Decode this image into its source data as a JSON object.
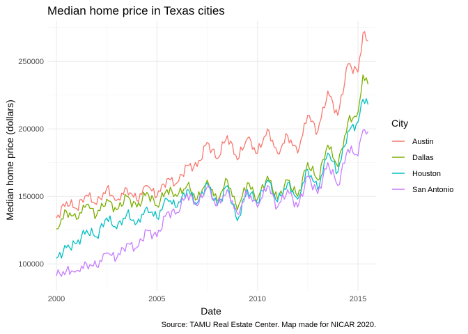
{
  "chart_data": {
    "type": "line",
    "title": "Median home price in Texas cities",
    "xlabel": "Date",
    "ylabel": "Median home price (dollars)",
    "caption": "Source: TAMU Real Estate Center. Map made for NICAR 2020.",
    "xlim": [
      1999.55,
      2015.9
    ],
    "ylim": [
      80000,
      280000
    ],
    "x_ticks": [
      2000,
      2005,
      2010,
      2015
    ],
    "x_tick_labels": [
      "2000",
      "2005",
      "2010",
      "2015"
    ],
    "y_ticks": [
      100000,
      150000,
      200000,
      250000
    ],
    "y_tick_labels": [
      "100000",
      "150000",
      "200000",
      "250000"
    ],
    "grid": true,
    "legend": {
      "title": "City",
      "position": "right"
    },
    "x": [
      2000,
      2000.5,
      2001,
      2001.5,
      2002,
      2002.5,
      2003,
      2003.5,
      2004,
      2004.5,
      2005,
      2005.5,
      2006,
      2006.5,
      2007,
      2007.5,
      2008,
      2008.5,
      2009,
      2009.5,
      2010,
      2010.5,
      2011,
      2011.5,
      2012,
      2012.5,
      2013,
      2013.5,
      2014,
      2014.5,
      2015,
      2015.25,
      2015.5
    ],
    "series": [
      {
        "name": "Austin",
        "color": "#F8766D",
        "values": [
          134000,
          146000,
          141000,
          151000,
          144000,
          156000,
          147000,
          156000,
          147000,
          158000,
          150000,
          163000,
          160000,
          173000,
          172000,
          190000,
          178000,
          195000,
          177000,
          193000,
          182000,
          200000,
          182000,
          195000,
          182000,
          210000,
          198000,
          228000,
          210000,
          248000,
          242000,
          271000,
          265000
        ]
      },
      {
        "name": "Dallas",
        "color": "#7CAE00",
        "values": [
          126000,
          139000,
          133000,
          144000,
          136000,
          148000,
          140000,
          150000,
          142000,
          153000,
          143000,
          155000,
          150000,
          158000,
          148000,
          162000,
          147000,
          162000,
          140000,
          160000,
          148000,
          165000,
          148000,
          162000,
          150000,
          175000,
          162000,
          188000,
          172000,
          205000,
          212000,
          240000,
          233000
        ]
      },
      {
        "name": "Houston",
        "color": "#00BFC4",
        "values": [
          104000,
          112000,
          115000,
          125000,
          120000,
          134000,
          126000,
          137000,
          130000,
          142000,
          134000,
          148000,
          142000,
          155000,
          145000,
          160000,
          143000,
          158000,
          132000,
          155000,
          145000,
          162000,
          146000,
          160000,
          148000,
          170000,
          155000,
          182000,
          168000,
          198000,
          205000,
          222000,
          218000
        ]
      },
      {
        "name": "San Antonio",
        "color": "#C77CFF",
        "values": [
          91000,
          95000,
          95000,
          100000,
          98000,
          108000,
          104000,
          115000,
          112000,
          125000,
          120000,
          138000,
          138000,
          152000,
          143000,
          157000,
          143000,
          155000,
          137000,
          153000,
          142000,
          158000,
          142000,
          155000,
          142000,
          165000,
          152000,
          175000,
          158000,
          185000,
          180000,
          199000,
          198000
        ]
      }
    ]
  }
}
